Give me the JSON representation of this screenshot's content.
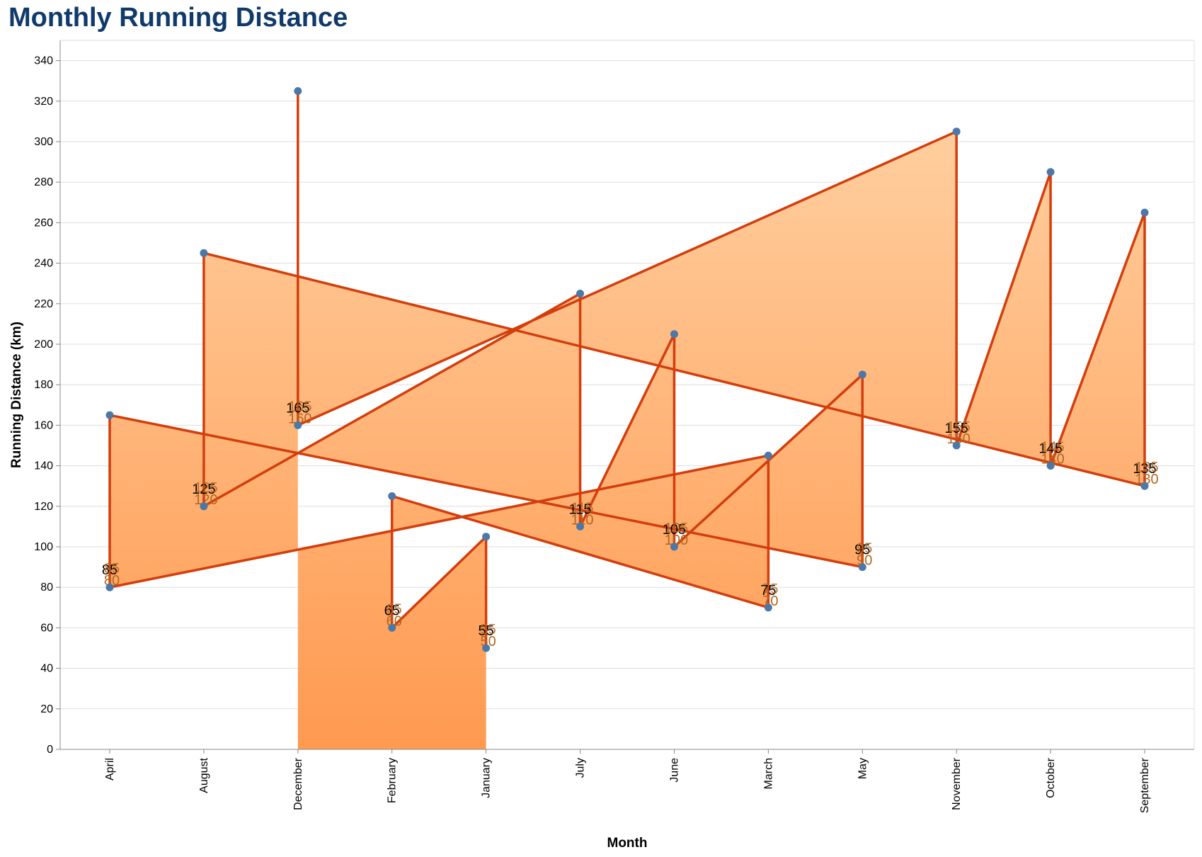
{
  "chart_data": {
    "type": "area",
    "title": "Monthly Running Distance",
    "xlabel": "Month",
    "ylabel": "Running Distance (km)",
    "ylim": [
      0,
      350
    ],
    "yticks": [
      0,
      20,
      40,
      60,
      80,
      100,
      120,
      140,
      160,
      180,
      200,
      220,
      240,
      260,
      280,
      300,
      320,
      340
    ],
    "grid": true,
    "categories": [
      "April",
      "August",
      "December",
      "February",
      "January",
      "July",
      "June",
      "March",
      "May",
      "November",
      "October",
      "September"
    ],
    "points": [
      {
        "month": "January",
        "start": 50,
        "end": 105
      },
      {
        "month": "February",
        "start": 60,
        "end": 125
      },
      {
        "month": "March",
        "start": 70,
        "end": 145
      },
      {
        "month": "April",
        "start": 80,
        "end": 165
      },
      {
        "month": "May",
        "start": 90,
        "end": 185
      },
      {
        "month": "June",
        "start": 100,
        "end": 205
      },
      {
        "month": "July",
        "start": 110,
        "end": 225
      },
      {
        "month": "August",
        "start": 120,
        "end": 245
      },
      {
        "month": "September",
        "start": 130,
        "end": 265
      },
      {
        "month": "October",
        "start": 140,
        "end": 285
      },
      {
        "month": "November",
        "start": 150,
        "end": 305
      },
      {
        "month": "December",
        "start": 160,
        "end": 325
      }
    ],
    "labels": [
      {
        "month": "April",
        "dark": "85",
        "orange": "80"
      },
      {
        "month": "August",
        "dark": "125",
        "orange": "120"
      },
      {
        "month": "December",
        "dark": "165",
        "orange": "160"
      },
      {
        "month": "February",
        "dark": "65",
        "orange": "60"
      },
      {
        "month": "January",
        "dark": "55",
        "orange": "50"
      },
      {
        "month": "July",
        "dark": "115",
        "orange": "110"
      },
      {
        "month": "June",
        "dark": "105",
        "orange": "100"
      },
      {
        "month": "March",
        "dark": "75",
        "orange": "70"
      },
      {
        "month": "May",
        "dark": "95",
        "orange": "90"
      },
      {
        "month": "November",
        "dark": "155",
        "orange": "150"
      },
      {
        "month": "October",
        "dark": "145",
        "orange": "140"
      },
      {
        "month": "September",
        "dark": "135",
        "orange": "130"
      }
    ],
    "colors": {
      "line": "#d43d0c",
      "area_top": "#ffcf9e",
      "area_bottom": "#ff9447",
      "point": "#4c78a8",
      "orange_label": "#b5651d",
      "dark_label": "#000000",
      "grid": "#dddddd",
      "title": "#0f3a6b"
    }
  }
}
